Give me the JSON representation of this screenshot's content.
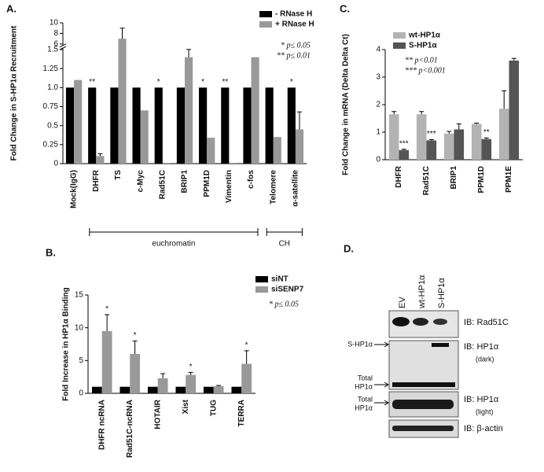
{
  "chart_data": [
    {
      "type": "bar",
      "label": "A.",
      "ylabel": "Fold Change in S-HP1α Recruitment",
      "categories": [
        "Mock(IgG)",
        "DHFR",
        "TS",
        "c-Myc",
        "Rad51C",
        "BRIP1",
        "PPM1D",
        "Vimentin",
        "c-fos",
        "Telomere",
        "α-satellite"
      ],
      "series": [
        {
          "name": "- RNase H",
          "color": "#000000",
          "values": [
            1,
            1,
            1,
            1,
            1,
            1,
            1,
            1,
            1,
            1,
            1
          ],
          "significance": [
            null,
            "**",
            null,
            null,
            "*",
            null,
            "*",
            "**",
            null,
            null,
            "*"
          ]
        },
        {
          "name": "+ RNase H",
          "color": "#999999",
          "values": [
            1.1,
            0.1,
            7,
            0.7,
            0.01,
            1.4,
            0.34,
            0.01,
            1.4,
            0.35,
            0.45
          ],
          "errors": [
            null,
            0.03,
            2,
            null,
            null,
            0.22,
            null,
            null,
            null,
            null,
            0.23
          ]
        }
      ],
      "ylim": [
        0,
        10
      ],
      "ybreak": [
        1.5,
        6
      ],
      "yticks": [
        0,
        0.25,
        0.5,
        0.75,
        {
          "value": 1,
          "label": "1.0"
        },
        1.25,
        1.5,
        6,
        8,
        10
      ],
      "notes": [
        "* p≤ 0.05",
        "** p≤ 0.01"
      ],
      "groups": [
        "euchromatin",
        "CH"
      ]
    },
    {
      "type": "bar",
      "label": "B.",
      "ylabel": "Fold Increase in HP1α Binding",
      "categories": [
        "DHFR ncRNA",
        "Rad51C-ncRNA",
        "HOTAIR",
        "Xist",
        "TUG",
        "TERRA"
      ],
      "series": [
        {
          "name": "siNT",
          "color": "#000000",
          "values": [
            1,
            1,
            1,
            1,
            1,
            1
          ]
        },
        {
          "name": "siSENP7",
          "color": "#999999",
          "values": [
            9.5,
            6,
            2.3,
            2.8,
            1.1,
            4.5
          ],
          "errors": [
            2.5,
            2,
            0.7,
            0.4,
            0.1,
            2
          ],
          "significance": [
            "*",
            "*",
            null,
            "*",
            null,
            "*"
          ]
        }
      ],
      "ylim": [
        0,
        15
      ],
      "yticks": [
        0,
        5,
        10,
        15
      ],
      "notes": [
        "* p≤ 0.05"
      ]
    },
    {
      "type": "bar",
      "label": "C.",
      "ylabel": "Fold Change in mRNA (Delta Delta Ct)",
      "categories": [
        "DHFR",
        "Rad51C",
        "BRIP1",
        "PPM1D",
        "PPM1E"
      ],
      "series": [
        {
          "name": "wt-HP1α",
          "color": "#b3b3b3",
          "values": [
            1.65,
            1.65,
            0.95,
            1.3,
            1.85
          ],
          "errors": [
            0.1,
            0.1,
            0.08,
            0.03,
            0.65
          ]
        },
        {
          "name": "S-HP1α",
          "color": "#555555",
          "values": [
            0.35,
            0.7,
            1.1,
            0.75,
            3.6
          ],
          "errors": [
            0.03,
            0.03,
            0.2,
            0.04,
            0.08
          ],
          "significance": [
            "***",
            "***",
            null,
            "**",
            null
          ]
        }
      ],
      "ylim": [
        0,
        4
      ],
      "yticks": [
        0,
        1,
        2,
        3,
        4
      ],
      "notes": [
        "** p<0.01",
        "*** p<0.001"
      ]
    }
  ],
  "blot": {
    "label": "D.",
    "lanes": [
      "EV",
      "wt-HP1α",
      "S-HP1α"
    ],
    "rows": [
      "IB: Rad51C",
      "IB: HP1α",
      "IB: HP1α",
      "IB: β-actin"
    ],
    "subs": [
      "(dark)",
      "(light)"
    ],
    "markers": [
      "S-HP1α",
      "Total",
      "HP1α",
      "Total",
      "HP1α"
    ]
  }
}
